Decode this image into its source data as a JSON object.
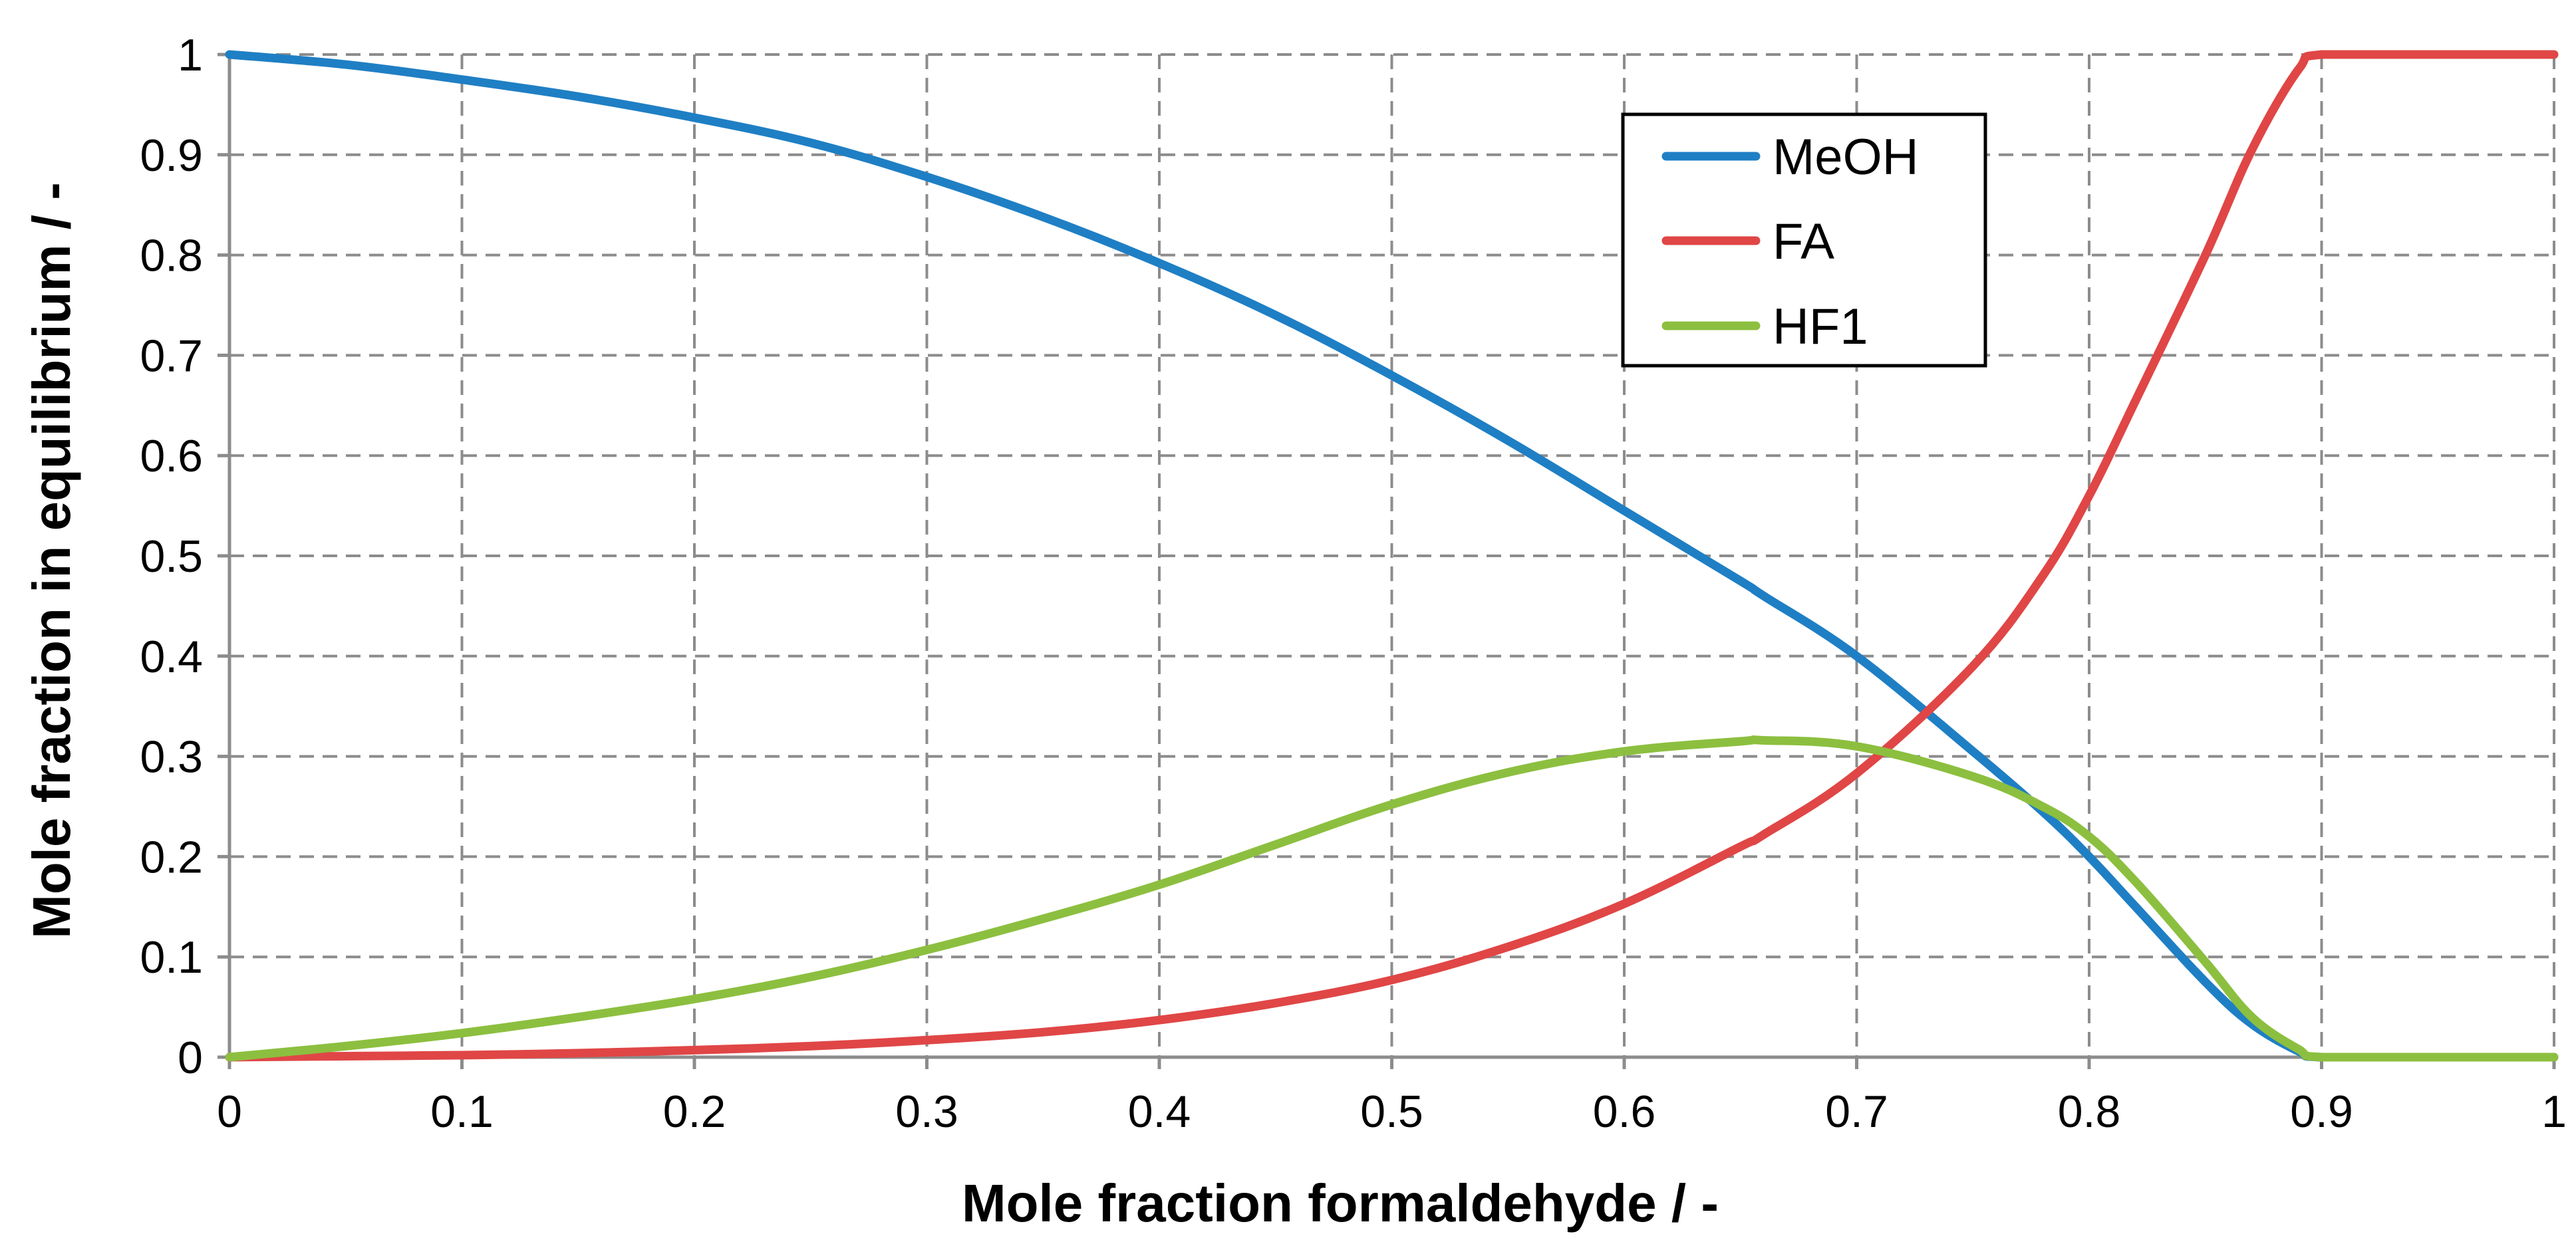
{
  "chart_data": {
    "type": "line",
    "title": "",
    "xlabel": "Mole fraction formaldehyde / -",
    "ylabel": "Mole fraction in equilibrium / -",
    "xlim": [
      0,
      1
    ],
    "ylim": [
      0,
      1
    ],
    "grid": true,
    "legend_position": "top-right",
    "x_ticks": [
      "0",
      "0.1",
      "0.2",
      "0.3",
      "0.4",
      "0.5",
      "0.6",
      "0.7",
      "0.8",
      "0.9",
      "1"
    ],
    "y_ticks": [
      "0",
      "0.1",
      "0.2",
      "0.3",
      "0.4",
      "0.5",
      "0.6",
      "0.7",
      "0.8",
      "0.9",
      "1"
    ],
    "x": [
      0,
      0.05,
      0.1,
      0.15,
      0.2,
      0.25,
      0.3,
      0.35,
      0.4,
      0.45,
      0.5,
      0.55,
      0.6,
      0.65,
      0.66,
      0.7,
      0.75,
      0.78,
      0.8,
      0.82,
      0.85,
      0.87,
      0.89,
      0.9,
      0.95,
      1
    ],
    "series": [
      {
        "name": "MeOH",
        "color": "#1f7fc4",
        "values": [
          1,
          0.99,
          0.975,
          0.958,
          0.937,
          0.912,
          0.878,
          0.838,
          0.792,
          0.74,
          0.68,
          0.615,
          0.545,
          0.475,
          0.46,
          0.4,
          0.305,
          0.245,
          0.2,
          0.15,
          0.075,
          0.033,
          0.006,
          0,
          0,
          0
        ]
      },
      {
        "name": "FA",
        "color": "#e04646",
        "values": [
          0,
          0.001,
          0.002,
          0.004,
          0.007,
          0.011,
          0.017,
          0.025,
          0.037,
          0.054,
          0.077,
          0.11,
          0.153,
          0.21,
          0.222,
          0.283,
          0.39,
          0.48,
          0.56,
          0.655,
          0.8,
          0.905,
          0.985,
          1,
          1,
          1
        ]
      },
      {
        "name": "HF1",
        "color": "#8cbf3f",
        "values": [
          0,
          0.011,
          0.024,
          0.04,
          0.058,
          0.08,
          0.107,
          0.138,
          0.172,
          0.212,
          0.252,
          0.284,
          0.305,
          0.315,
          0.316,
          0.31,
          0.28,
          0.25,
          0.22,
          0.175,
          0.095,
          0.04,
          0.008,
          0,
          0,
          0
        ]
      }
    ]
  }
}
